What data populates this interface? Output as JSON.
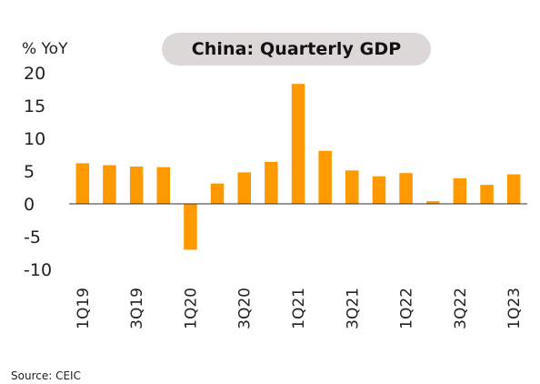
{
  "chart_data": {
    "type": "bar",
    "title": "China: Quarterly GDP",
    "ylabel": "% YoY",
    "xlabel": "",
    "ylim": [
      -10,
      20
    ],
    "yticks": [
      20,
      15,
      10,
      5,
      0,
      -5,
      -10
    ],
    "categories": [
      "1Q19",
      "2Q19",
      "3Q19",
      "4Q19",
      "1Q20",
      "2Q20",
      "3Q20",
      "4Q20",
      "1Q21",
      "2Q21",
      "3Q21",
      "4Q21",
      "1Q22",
      "2Q22",
      "3Q22",
      "4Q22",
      "1Q23"
    ],
    "tick_labels": [
      "1Q19",
      "3Q19",
      "1Q20",
      "3Q20",
      "1Q21",
      "3Q21",
      "1Q22",
      "3Q22",
      "1Q23"
    ],
    "values": [
      6.2,
      5.9,
      5.7,
      5.6,
      -7.0,
      3.1,
      4.8,
      6.4,
      18.3,
      8.1,
      5.1,
      4.2,
      4.7,
      0.4,
      3.9,
      2.9,
      4.5
    ],
    "bar_color": "#ff9900",
    "grid": false,
    "legend": "none",
    "source": "Source: CEIC"
  }
}
